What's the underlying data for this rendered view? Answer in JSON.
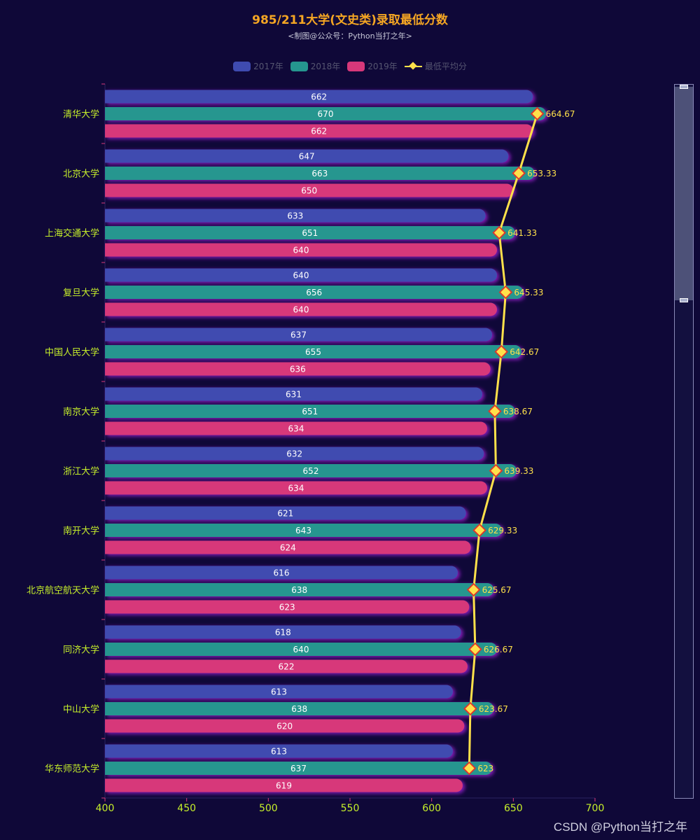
{
  "chart_data": {
    "type": "bar",
    "orientation": "horizontal",
    "title": "985/211大学(文史类)录取最低分数",
    "subtitle": "<制图@公众号：Python当打之年>",
    "categories": [
      "清华大学",
      "北京大学",
      "上海交通大学",
      "复旦大学",
      "中国人民大学",
      "南京大学",
      "浙江大学",
      "南开大学",
      "北京航空航天大学",
      "同济大学",
      "中山大学",
      "华东师范大学"
    ],
    "series": [
      {
        "name": "2017年",
        "color": "#3f4bb0",
        "values": [
          662,
          647,
          633,
          640,
          637,
          631,
          632,
          621,
          616,
          618,
          613,
          613
        ]
      },
      {
        "name": "2018年",
        "color": "#25968f",
        "values": [
          670,
          663,
          651,
          656,
          655,
          651,
          652,
          643,
          638,
          640,
          638,
          637
        ]
      },
      {
        "name": "2019年",
        "color": "#d7387a",
        "values": [
          662,
          650,
          640,
          640,
          636,
          634,
          634,
          624,
          623,
          622,
          620,
          619
        ]
      }
    ],
    "line": {
      "name": "最低平均分",
      "color": "#ffe14a",
      "values": [
        "664.67",
        "653.33",
        "641.33",
        "645.33",
        "642.67",
        "638.67",
        "639.33",
        "629.33",
        "625.67",
        "626.67",
        "623.67",
        "623"
      ]
    },
    "xlim": [
      400,
      700
    ],
    "xticks": [
      400,
      450,
      500,
      550,
      600,
      650,
      700
    ],
    "legend_position": "top-center"
  },
  "watermark": "CSDN @Python当打之年"
}
